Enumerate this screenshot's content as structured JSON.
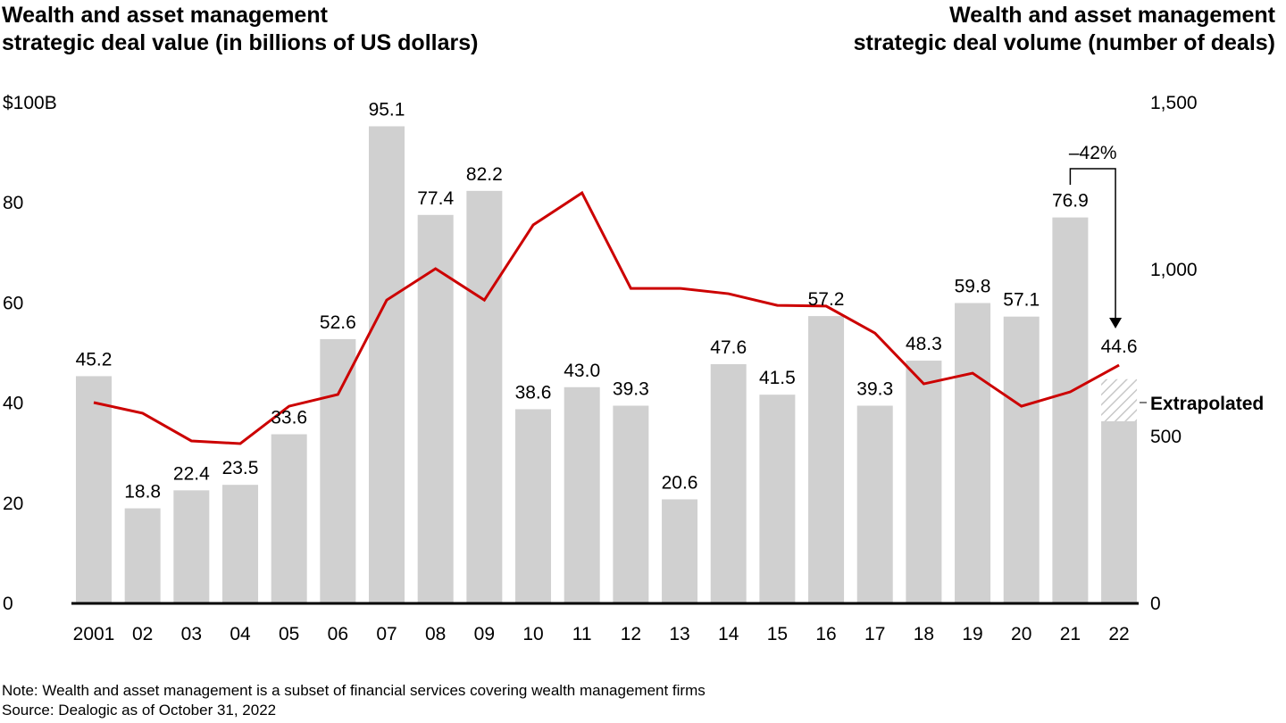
{
  "chart_data": {
    "type": "bar+line",
    "title_left": "Wealth and asset management strategic deal value (in billions of US dollars)",
    "title_right": "Wealth and asset management strategic deal volume (number of deals)",
    "categories": [
      "2001",
      "02",
      "03",
      "04",
      "05",
      "06",
      "07",
      "08",
      "09",
      "10",
      "11",
      "12",
      "13",
      "14",
      "15",
      "16",
      "17",
      "18",
      "19",
      "20",
      "21",
      "22"
    ],
    "bar_series": {
      "axis": "left",
      "values": [
        45.2,
        18.8,
        22.4,
        23.5,
        33.6,
        52.6,
        95.1,
        77.4,
        82.2,
        38.6,
        43.0,
        39.3,
        20.6,
        47.6,
        41.5,
        57.2,
        39.3,
        48.3,
        59.8,
        57.1,
        76.9,
        44.6
      ],
      "labels": [
        "45.2",
        "18.8",
        "22.4",
        "23.5",
        "",
        "52.6",
        "95.1",
        "77.4",
        "82.2",
        "38.6",
        "43.0",
        "39.3",
        "20.6",
        "47.6",
        "41.5",
        "57.2",
        "39.3",
        "48.3",
        "59.8",
        "57.1",
        "76.9",
        "44.6"
      ],
      "label_33": "33.6",
      "actual_2022": 36.2,
      "color": "#d0d0d0"
    },
    "line_series": {
      "axis": "right",
      "values": [
        599,
        567,
        484,
        476,
        588,
        623,
        906,
        1000,
        906,
        1131,
        1227,
        941,
        941,
        925,
        890,
        888,
        807,
        655,
        687,
        588,
        631,
        711
      ],
      "color": "#cc0000"
    },
    "left_axis": {
      "ylim": [
        0,
        100
      ],
      "ticks": [
        0,
        20,
        40,
        60,
        80,
        100
      ],
      "tick_labels": [
        "0",
        "20",
        "40",
        "60",
        "80",
        "$100B"
      ]
    },
    "right_axis": {
      "ylim": [
        0,
        1500
      ],
      "ticks": [
        0,
        500,
        1000,
        1500
      ],
      "tick_labels": [
        "0",
        "500",
        "1,000",
        "1,500"
      ]
    },
    "annotations": {
      "change": "–42%",
      "extrapolated": "Extrapolated"
    },
    "grid": false,
    "legend": "none"
  },
  "footer": {
    "note": "Note: Wealth and asset management is a subset of financial services covering wealth management firms",
    "source": "Source: Dealogic as of October 31, 2022"
  }
}
